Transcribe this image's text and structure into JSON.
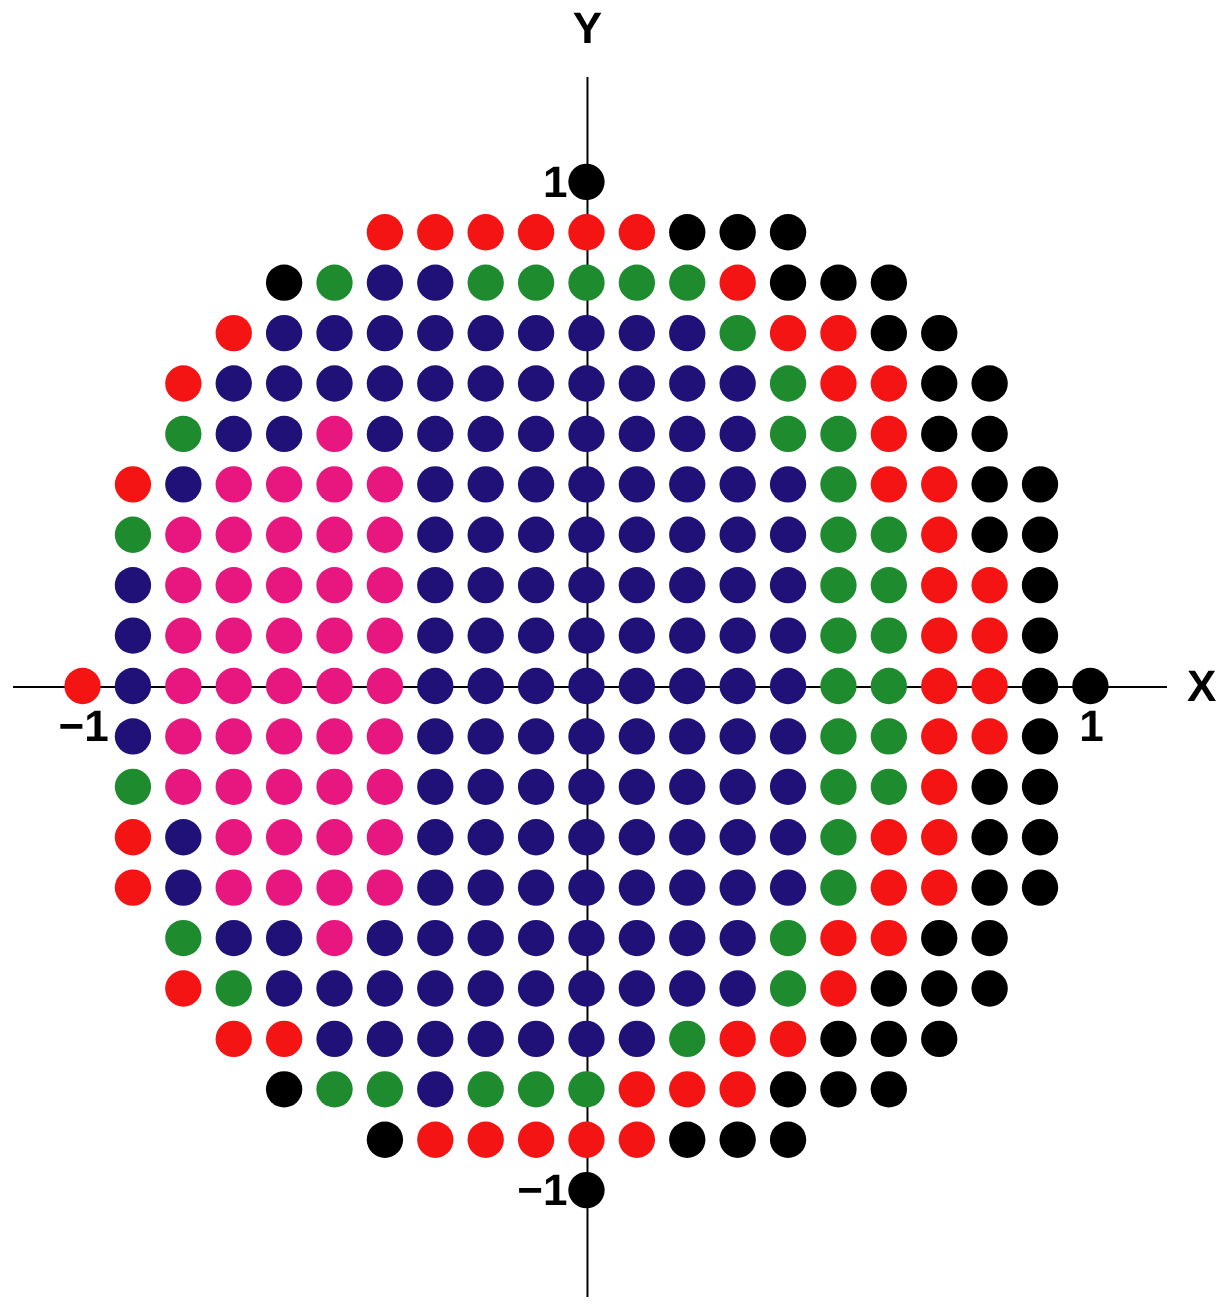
{
  "chart_data": {
    "type": "scatter",
    "xlabel": "X",
    "ylabel": "Y",
    "xlim": [
      -1.14,
      1.15
    ],
    "ylim": [
      -1.21,
      1.21
    ],
    "xticks": [
      {
        "value": -1,
        "label": "−1"
      },
      {
        "value": 1,
        "label": "1"
      }
    ],
    "yticks": [
      {
        "value": -1,
        "label": "−1"
      },
      {
        "value": 1,
        "label": "1"
      }
    ],
    "grid": false,
    "marker": "circle",
    "series": [
      {
        "color": "#000000",
        "x": [
          -0.6,
          -0.6,
          -0.4,
          0,
          0,
          0.2,
          0.2,
          0.3,
          0.3,
          0.4,
          0.4,
          0.4,
          0.4,
          0.5,
          0.5,
          0.5,
          0.6,
          0.6,
          0.6,
          0.6,
          0.6,
          0.7,
          0.7,
          0.7,
          0.7,
          0.7,
          0.7,
          0.8,
          0.8,
          0.8,
          0.8,
          0.8,
          0.8,
          0.8,
          0.8,
          0.8,
          0.9,
          0.9,
          0.9,
          0.9,
          0.9,
          0.9,
          0.9,
          0.9,
          0.9,
          1
        ],
        "values": [
          0.8,
          -0.8,
          -0.9,
          1,
          -1,
          0.9,
          -0.9,
          0.9,
          -0.9,
          0.9,
          0.8,
          -0.8,
          -0.9,
          0.8,
          -0.7,
          -0.8,
          0.8,
          0.7,
          -0.6,
          -0.7,
          -0.8,
          0.7,
          0.6,
          0.5,
          -0.5,
          -0.6,
          -0.7,
          0.6,
          0.5,
          0.4,
          0.3,
          -0.2,
          -0.3,
          -0.4,
          -0.5,
          -0.6,
          0.4,
          0.3,
          0.2,
          0.1,
          0,
          -0.1,
          -0.2,
          -0.3,
          -0.4,
          0
        ]
      },
      {
        "color": "#f51414",
        "x": [
          -1,
          -0.9,
          -0.9,
          -0.9,
          -0.8,
          -0.8,
          -0.7,
          -0.7,
          -0.6,
          -0.4,
          -0.3,
          -0.3,
          -0.2,
          -0.2,
          -0.1,
          -0.1,
          0,
          0,
          0.1,
          0.1,
          0.1,
          0.2,
          0.3,
          0.3,
          0.3,
          0.4,
          0.4,
          0.5,
          0.5,
          0.5,
          0.5,
          0.6,
          0.6,
          0.6,
          0.6,
          0.6,
          0.6,
          0.7,
          0.7,
          0.7,
          0.7,
          0.7,
          0.7,
          0.7,
          0.7,
          0.7,
          0.8,
          0.8,
          0.8,
          0.8
        ],
        "values": [
          0,
          0.4,
          -0.3,
          -0.4,
          0.6,
          -0.6,
          0.7,
          -0.7,
          -0.7,
          0.9,
          0.9,
          -0.9,
          0.9,
          -0.9,
          0.9,
          -0.9,
          0.9,
          -0.9,
          0.9,
          -0.8,
          -0.9,
          -0.8,
          0.8,
          -0.7,
          -0.8,
          0.7,
          -0.7,
          0.7,
          0.6,
          -0.5,
          -0.6,
          0.6,
          0.5,
          0.4,
          -0.3,
          -0.4,
          -0.5,
          0.4,
          0.3,
          0.2,
          0.1,
          0,
          -0.1,
          -0.2,
          -0.3,
          -0.4,
          0.2,
          0.1,
          0,
          -0.1
        ]
      },
      {
        "color": "#1e8c2e",
        "x": [
          -0.9,
          -0.9,
          -0.8,
          -0.8,
          -0.7,
          -0.5,
          -0.5,
          -0.4,
          -0.2,
          -0.2,
          -0.1,
          -0.1,
          0,
          0,
          0.1,
          0.2,
          0.2,
          0.3,
          0.4,
          0.4,
          0.4,
          0.4,
          0.5,
          0.5,
          0.5,
          0.5,
          0.5,
          0.5,
          0.5,
          0.5,
          0.5,
          0.5,
          0.6,
          0.6,
          0.6,
          0.6,
          0.6,
          0.6
        ],
        "values": [
          0.3,
          -0.2,
          0.5,
          -0.5,
          -0.6,
          0.8,
          -0.8,
          -0.8,
          0.8,
          -0.8,
          0.8,
          -0.8,
          0.8,
          -0.8,
          0.8,
          0.8,
          -0.7,
          0.7,
          0.6,
          0.5,
          -0.5,
          -0.6,
          0.5,
          0.4,
          0.3,
          0.2,
          0.1,
          0,
          -0.1,
          -0.2,
          -0.3,
          -0.4,
          0.3,
          0.2,
          0.1,
          0,
          -0.1,
          -0.2
        ]
      },
      {
        "color": "#1f1177",
        "x": [
          -0.9,
          -0.9,
          -0.9,
          -0.9,
          -0.8,
          -0.8,
          -0.8,
          -0.7,
          -0.7,
          -0.7,
          -0.6,
          -0.6,
          -0.6,
          -0.6,
          -0.6,
          -0.5,
          -0.5,
          -0.5,
          -0.5,
          -0.4,
          -0.4,
          -0.4,
          -0.4,
          -0.4,
          -0.4,
          -0.4,
          -0.3,
          -0.3,
          -0.3,
          -0.3,
          -0.3,
          -0.3,
          -0.3,
          -0.3,
          -0.3,
          -0.3,
          -0.3,
          -0.3,
          -0.3,
          -0.3,
          -0.3,
          -0.3,
          -0.3,
          -0.2,
          -0.2,
          -0.2,
          -0.2,
          -0.2,
          -0.2,
          -0.2,
          -0.2,
          -0.2,
          -0.2,
          -0.2,
          -0.2,
          -0.2,
          -0.2,
          -0.2,
          -0.1,
          -0.1,
          -0.1,
          -0.1,
          -0.1,
          -0.1,
          -0.1,
          -0.1,
          -0.1,
          -0.1,
          -0.1,
          -0.1,
          -0.1,
          -0.1,
          -0.1,
          0,
          0,
          0,
          0,
          0,
          0,
          0,
          0,
          0,
          0,
          0,
          0,
          0,
          0,
          0,
          0.1,
          0.1,
          0.1,
          0.1,
          0.1,
          0.1,
          0.1,
          0.1,
          0.1,
          0.1,
          0.1,
          0.1,
          0.1,
          0.1,
          0.1,
          0.2,
          0.2,
          0.2,
          0.2,
          0.2,
          0.2,
          0.2,
          0.2,
          0.2,
          0.2,
          0.2,
          0.2,
          0.2,
          0.2,
          0.3,
          0.3,
          0.3,
          0.3,
          0.3,
          0.3,
          0.3,
          0.3,
          0.3,
          0.3,
          0.3,
          0.3,
          0.3,
          0.4,
          0.4,
          0.4,
          0.4,
          0.4,
          0.4,
          0.4,
          0.4,
          0.4
        ],
        "values": [
          0.2,
          0.1,
          0,
          -0.1,
          0.4,
          -0.3,
          -0.4,
          0.6,
          0.5,
          -0.5,
          0.7,
          0.6,
          0.5,
          -0.5,
          -0.6,
          0.7,
          0.6,
          -0.6,
          -0.7,
          0.8,
          0.7,
          0.6,
          0.5,
          -0.5,
          -0.6,
          -0.7,
          0.8,
          0.7,
          0.6,
          0.5,
          0.4,
          0.3,
          0.2,
          0.1,
          0,
          -0.1,
          -0.2,
          -0.3,
          -0.4,
          -0.5,
          -0.6,
          -0.7,
          -0.8,
          0.7,
          0.6,
          0.5,
          0.4,
          0.3,
          0.2,
          0.1,
          0,
          -0.1,
          -0.2,
          -0.3,
          -0.4,
          -0.5,
          -0.6,
          -0.7,
          0.7,
          0.6,
          0.5,
          0.4,
          0.3,
          0.2,
          0.1,
          0,
          -0.1,
          -0.2,
          -0.3,
          -0.4,
          -0.5,
          -0.6,
          -0.7,
          0.7,
          0.6,
          0.5,
          0.4,
          0.3,
          0.2,
          0.1,
          0,
          -0.1,
          -0.2,
          -0.3,
          -0.4,
          -0.5,
          -0.6,
          -0.7,
          0.7,
          0.6,
          0.5,
          0.4,
          0.3,
          0.2,
          0.1,
          0,
          -0.1,
          -0.2,
          -0.3,
          -0.4,
          -0.5,
          -0.6,
          -0.7,
          0.7,
          0.6,
          0.5,
          0.4,
          0.3,
          0.2,
          0.1,
          0,
          -0.1,
          -0.2,
          -0.3,
          -0.4,
          -0.5,
          -0.6,
          0.6,
          0.5,
          0.4,
          0.3,
          0.2,
          0.1,
          0,
          -0.1,
          -0.2,
          -0.3,
          -0.4,
          -0.5,
          -0.6,
          0.4,
          0.3,
          0.2,
          0.1,
          0,
          -0.1,
          -0.2,
          -0.3,
          -0.4
        ]
      },
      {
        "color": "#e8177f",
        "x": [
          -0.8,
          -0.8,
          -0.8,
          -0.8,
          -0.8,
          -0.8,
          -0.7,
          -0.7,
          -0.7,
          -0.7,
          -0.7,
          -0.7,
          -0.7,
          -0.7,
          -0.7,
          -0.6,
          -0.6,
          -0.6,
          -0.6,
          -0.6,
          -0.6,
          -0.6,
          -0.6,
          -0.6,
          -0.5,
          -0.5,
          -0.5,
          -0.5,
          -0.5,
          -0.5,
          -0.5,
          -0.5,
          -0.5,
          -0.5,
          -0.5,
          -0.4,
          -0.4,
          -0.4,
          -0.4,
          -0.4,
          -0.4,
          -0.4,
          -0.4,
          -0.4
        ],
        "values": [
          0.3,
          0.2,
          0.1,
          0,
          -0.1,
          -0.2,
          0.4,
          0.3,
          0.2,
          0.1,
          0,
          -0.1,
          -0.2,
          -0.3,
          -0.4,
          0.4,
          0.3,
          0.2,
          0.1,
          0,
          -0.1,
          -0.2,
          -0.3,
          -0.4,
          0.5,
          0.4,
          0.3,
          0.2,
          0.1,
          0,
          -0.1,
          -0.2,
          -0.3,
          -0.4,
          -0.5,
          0.4,
          0.3,
          0.2,
          0.1,
          0,
          -0.1,
          -0.2,
          -0.3,
          -0.4
        ]
      }
    ]
  }
}
